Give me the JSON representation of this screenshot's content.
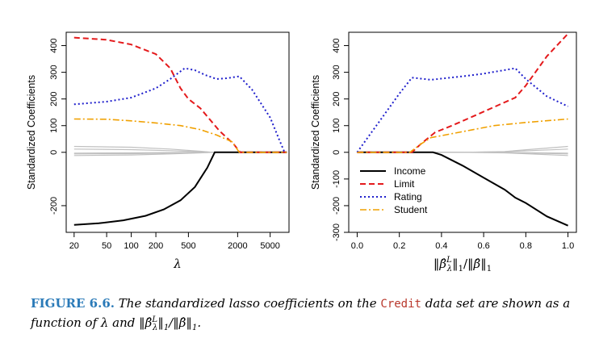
{
  "caption": {
    "label": "FIGURE 6.6.",
    "text_before": "The standardized lasso coefficients on the",
    "dataset": "Credit",
    "text_after": "data set are shown as a function of λ and ‖β̂",
    "text_after_sup": "L",
    "text_after_sub": "λ",
    "text_after_end": "‖",
    "text_after_sub2": "1",
    "text_after_end2": "/‖β̂‖",
    "text_after_sub3": "1",
    "text_after_end3": "."
  },
  "colors": {
    "Income": "#000000",
    "Limit": "#e41a1c",
    "Rating": "#1f1fcc",
    "Student": "#f0a000",
    "others": "#c0c0c0",
    "caption_label": "#2a7ab8",
    "caption_code": "#b8372b"
  },
  "chart_data": [
    {
      "type": "line",
      "ylabel": "Standardized Coefficients",
      "xlabel": "λ",
      "xscale": "log",
      "x_direction": "reversed",
      "xlim": [
        16,
        8500
      ],
      "ylim": [
        -300,
        450
      ],
      "xticks": [
        20,
        50,
        100,
        200,
        500,
        2000,
        5000
      ],
      "yticks": [
        -200,
        0,
        100,
        200,
        300,
        400
      ],
      "legend": false,
      "grid": false,
      "series": [
        {
          "name": "Income",
          "points": [
            [
              20,
              -272
            ],
            [
              40,
              -266
            ],
            [
              80,
              -255
            ],
            [
              150,
              -238
            ],
            [
              250,
              -214
            ],
            [
              400,
              -180
            ],
            [
              600,
              -130
            ],
            [
              850,
              -58
            ],
            [
              1050,
              0
            ],
            [
              8000,
              0
            ]
          ]
        },
        {
          "name": "Limit",
          "points": [
            [
              20,
              430
            ],
            [
              50,
              422
            ],
            [
              100,
              404
            ],
            [
              200,
              368
            ],
            [
              300,
              315
            ],
            [
              400,
              240
            ],
            [
              500,
              200
            ],
            [
              700,
              165
            ],
            [
              1200,
              80
            ],
            [
              1800,
              30
            ],
            [
              2150,
              0
            ],
            [
              8000,
              0
            ]
          ]
        },
        {
          "name": "Rating",
          "points": [
            [
              20,
              180
            ],
            [
              50,
              190
            ],
            [
              100,
              205
            ],
            [
              200,
              240
            ],
            [
              300,
              275
            ],
            [
              450,
              315
            ],
            [
              600,
              308
            ],
            [
              800,
              290
            ],
            [
              1100,
              275
            ],
            [
              1500,
              278
            ],
            [
              2100,
              285
            ],
            [
              3000,
              235
            ],
            [
              5000,
              130
            ],
            [
              6500,
              45
            ],
            [
              7500,
              0
            ],
            [
              8000,
              0
            ]
          ]
        },
        {
          "name": "Student",
          "points": [
            [
              20,
              125
            ],
            [
              50,
              124
            ],
            [
              100,
              118
            ],
            [
              200,
              110
            ],
            [
              400,
              100
            ],
            [
              700,
              85
            ],
            [
              1100,
              65
            ],
            [
              1700,
              40
            ],
            [
              2100,
              0
            ],
            [
              8000,
              0
            ]
          ]
        },
        {
          "points": [
            [
              20,
              22
            ],
            [
              100,
              19
            ],
            [
              300,
              12
            ],
            [
              700,
              4
            ],
            [
              1000,
              0
            ],
            [
              8000,
              0
            ]
          ]
        },
        {
          "points": [
            [
              20,
              12
            ],
            [
              100,
              10
            ],
            [
              300,
              6
            ],
            [
              700,
              2
            ],
            [
              1000,
              0
            ],
            [
              8000,
              0
            ]
          ]
        },
        {
          "points": [
            [
              20,
              -6
            ],
            [
              100,
              -5
            ],
            [
              300,
              -3
            ],
            [
              700,
              -1
            ],
            [
              1000,
              0
            ],
            [
              8000,
              0
            ]
          ]
        },
        {
          "points": [
            [
              20,
              -12
            ],
            [
              100,
              -10
            ],
            [
              300,
              -6
            ],
            [
              700,
              -2
            ],
            [
              1000,
              0
            ],
            [
              8000,
              0
            ]
          ]
        },
        {
          "points": [
            [
              20,
              -3
            ],
            [
              100,
              -2
            ],
            [
              300,
              -1
            ],
            [
              700,
              0
            ],
            [
              8000,
              0
            ]
          ]
        }
      ]
    },
    {
      "type": "line",
      "ylabel": "Standardized Coefficients",
      "xlabel": "‖β̂λL‖1/‖β̂‖1",
      "xlim": [
        -0.04,
        1.04
      ],
      "ylim": [
        -300,
        450
      ],
      "xticks": [
        0.0,
        0.2,
        0.4,
        0.6,
        0.8,
        1.0
      ],
      "xtick_labels": [
        "0.0",
        "0.2",
        "0.4",
        "0.6",
        "0.8",
        "1.0"
      ],
      "yticks": [
        -300,
        -200,
        -100,
        0,
        100,
        200,
        300,
        400
      ],
      "legend": true,
      "legend_position": "bottom-left",
      "grid": false,
      "series": [
        {
          "name": "Income",
          "points": [
            [
              0,
              0
            ],
            [
              0.36,
              0
            ],
            [
              0.4,
              -10
            ],
            [
              0.5,
              -50
            ],
            [
              0.6,
              -95
            ],
            [
              0.7,
              -140
            ],
            [
              0.75,
              -170
            ],
            [
              0.8,
              -190
            ],
            [
              0.9,
              -240
            ],
            [
              1.0,
              -275
            ]
          ]
        },
        {
          "name": "Limit",
          "points": [
            [
              0,
              0
            ],
            [
              0.26,
              0
            ],
            [
              0.3,
              30
            ],
            [
              0.37,
              75
            ],
            [
              0.45,
              100
            ],
            [
              0.55,
              135
            ],
            [
              0.65,
              170
            ],
            [
              0.75,
              205
            ],
            [
              0.8,
              250
            ],
            [
              0.9,
              360
            ],
            [
              1.0,
              445
            ]
          ]
        },
        {
          "name": "Rating",
          "points": [
            [
              0,
              0
            ],
            [
              0.1,
              110
            ],
            [
              0.2,
              220
            ],
            [
              0.26,
              280
            ],
            [
              0.35,
              272
            ],
            [
              0.5,
              285
            ],
            [
              0.6,
              295
            ],
            [
              0.75,
              315
            ],
            [
              0.8,
              275
            ],
            [
              0.9,
              210
            ],
            [
              1.0,
              172
            ]
          ]
        },
        {
          "name": "Student",
          "points": [
            [
              0,
              0
            ],
            [
              0.25,
              0
            ],
            [
              0.3,
              30
            ],
            [
              0.35,
              55
            ],
            [
              0.45,
              70
            ],
            [
              0.55,
              85
            ],
            [
              0.65,
              100
            ],
            [
              0.8,
              112
            ],
            [
              1.0,
              125
            ]
          ]
        },
        {
          "points": [
            [
              0,
              0
            ],
            [
              0.5,
              0
            ],
            [
              0.7,
              3
            ],
            [
              1.0,
              22
            ]
          ]
        },
        {
          "points": [
            [
              0,
              0
            ],
            [
              0.5,
              0
            ],
            [
              0.7,
              2
            ],
            [
              1.0,
              12
            ]
          ]
        },
        {
          "points": [
            [
              0,
              0
            ],
            [
              0.5,
              0
            ],
            [
              0.7,
              -1
            ],
            [
              1.0,
              -6
            ]
          ]
        },
        {
          "points": [
            [
              0,
              0
            ],
            [
              0.5,
              0
            ],
            [
              0.7,
              -2
            ],
            [
              1.0,
              -12
            ]
          ]
        },
        {
          "points": [
            [
              0,
              0
            ],
            [
              0.6,
              0
            ],
            [
              1.0,
              -3
            ]
          ]
        }
      ],
      "legend_entries": [
        "Income",
        "Limit",
        "Rating",
        "Student"
      ]
    }
  ]
}
